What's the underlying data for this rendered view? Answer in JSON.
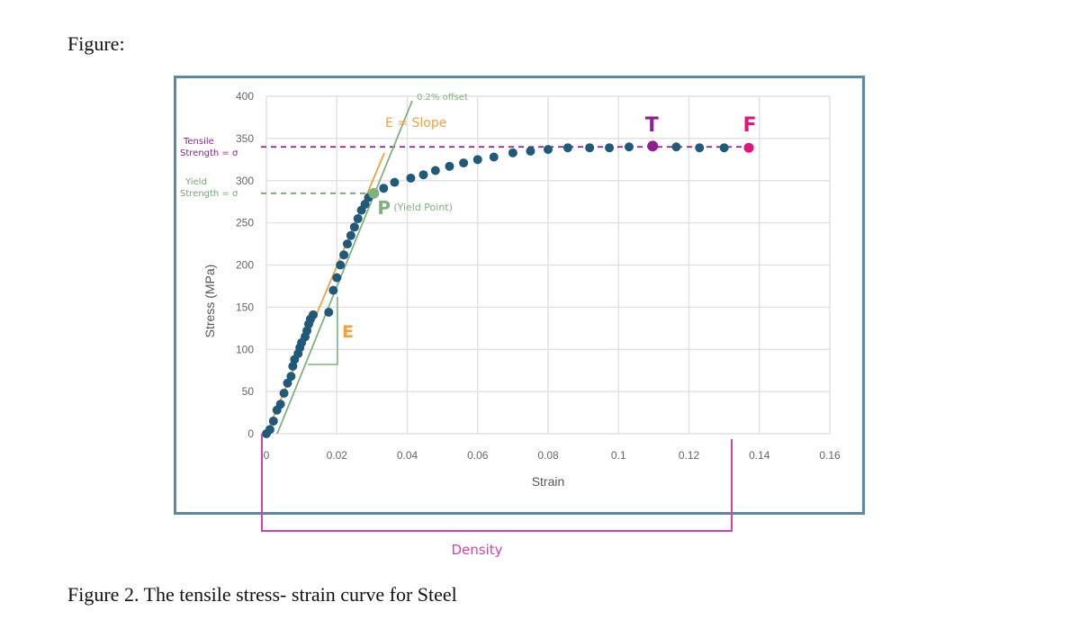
{
  "document": {
    "figure_label": "Figure:",
    "caption": "Figure 2. The tensile stress- strain curve for Steel"
  },
  "chart_data": {
    "type": "scatter",
    "title": "",
    "xlabel": "Strain",
    "ylabel": "Stress (MPa)",
    "xlim": [
      0,
      0.16
    ],
    "ylim": [
      0,
      400
    ],
    "x_ticks": [
      "0",
      "0.02",
      "0.04",
      "0.06",
      "0.08",
      "0.1",
      "0.12",
      "0.14",
      "0.16"
    ],
    "y_ticks": [
      "0",
      "50",
      "100",
      "150",
      "200",
      "250",
      "300",
      "350",
      "400"
    ],
    "grid": true,
    "series_color": "#1f5a7a",
    "points": [
      [
        0,
        0
      ],
      [
        0.001,
        5
      ],
      [
        0.002,
        15
      ],
      [
        0.003,
        28
      ],
      [
        0.004,
        35
      ],
      [
        0.005,
        48
      ],
      [
        0.006,
        60
      ],
      [
        0.007,
        68
      ],
      [
        0.0075,
        80
      ],
      [
        0.008,
        88
      ],
      [
        0.009,
        95
      ],
      [
        0.0095,
        102
      ],
      [
        0.01,
        108
      ],
      [
        0.011,
        115
      ],
      [
        0.0115,
        122
      ],
      [
        0.012,
        130
      ],
      [
        0.0125,
        136
      ],
      [
        0.0133,
        141
      ],
      [
        0.0177,
        144
      ],
      [
        0.019,
        170
      ],
      [
        0.02,
        185
      ],
      [
        0.021,
        200
      ],
      [
        0.022,
        212
      ],
      [
        0.023,
        225
      ],
      [
        0.024,
        235
      ],
      [
        0.025,
        245
      ],
      [
        0.026,
        255
      ],
      [
        0.027,
        265
      ],
      [
        0.028,
        272
      ],
      [
        0.029,
        280
      ],
      [
        0.0333,
        291
      ],
      [
        0.0364,
        298
      ],
      [
        0.041,
        303
      ],
      [
        0.0446,
        307
      ],
      [
        0.048,
        312
      ],
      [
        0.052,
        317
      ],
      [
        0.056,
        321
      ],
      [
        0.06,
        325
      ],
      [
        0.0646,
        328
      ],
      [
        0.07,
        333
      ],
      [
        0.075,
        335
      ],
      [
        0.08,
        337
      ],
      [
        0.0856,
        339
      ],
      [
        0.0918,
        339
      ],
      [
        0.0974,
        339
      ],
      [
        0.103,
        340
      ],
      [
        0.1164,
        340
      ],
      [
        0.123,
        339
      ],
      [
        0.13,
        339
      ]
    ],
    "special_points": {
      "yield": {
        "label": "P",
        "note": "(Yield Point)",
        "x": 0.0305,
        "y": 285,
        "color": "#7fb27f"
      },
      "tensile": {
        "label": "T",
        "x": 0.1097,
        "y": 341,
        "color": "#8e1f8e"
      },
      "fracture": {
        "label": "F",
        "x": 0.137,
        "y": 339,
        "color": "#e0157f"
      }
    },
    "annotations": {
      "tensile_strength": {
        "line1": "Tensile",
        "line2": "Strength = σ",
        "value": 340,
        "color": "#8e1f8e"
      },
      "yield_strength": {
        "line1": "Yield",
        "line2": "Strength = σ",
        "value": 285,
        "color": "#6fa86f"
      },
      "slope_label": "E = Slope",
      "slope_color": "#f0a040",
      "offset_label": "0.2% offset",
      "offset_color": "#7fb27f",
      "modulus_label": "E",
      "density_label": "Density",
      "density_color": "#d53fb0"
    }
  }
}
